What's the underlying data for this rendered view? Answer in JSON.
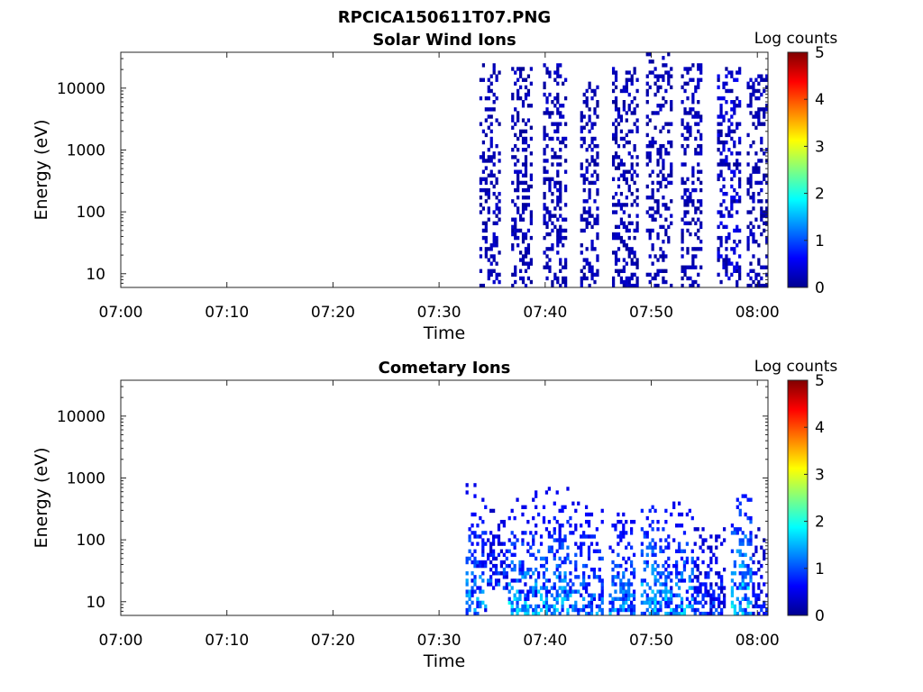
{
  "figure_title": "RPCICA150611T07.PNG",
  "colorbar_colors": [
    "#00008f",
    "#0000ff",
    "#0080ff",
    "#00ffff",
    "#80ff80",
    "#ffff00",
    "#ff8000",
    "#ff0000",
    "#800000"
  ],
  "chart_data": [
    {
      "type": "heatmap",
      "title": "Solar Wind Ions",
      "xlabel": "Time",
      "ylabel": "Energy (eV)",
      "x_ticks": [
        "07:00",
        "07:10",
        "07:20",
        "07:30",
        "07:40",
        "07:50",
        "08:00"
      ],
      "x_range_minutes": [
        0,
        61
      ],
      "y_scale": "log",
      "y_ticks": [
        "10",
        "100",
        "1000",
        "10000"
      ],
      "y_range_eV": [
        6,
        38000
      ],
      "colorbar": {
        "label": "Log counts",
        "range": [
          0,
          5
        ],
        "ticks": [
          "0",
          "1",
          "2",
          "3",
          "4",
          "5"
        ]
      },
      "bursts": [
        {
          "t_start_min": 33.8,
          "t_end_min": 35.6,
          "e_min_eV": 6,
          "e_max_eV": 25000,
          "typical_log_counts": 0.1,
          "peak_log_counts": 0.4
        },
        {
          "t_start_min": 36.8,
          "t_end_min": 38.8,
          "e_min_eV": 6,
          "e_max_eV": 20000,
          "typical_log_counts": 0.1,
          "peak_log_counts": 0.4
        },
        {
          "t_start_min": 39.8,
          "t_end_min": 42.0,
          "e_min_eV": 6,
          "e_max_eV": 25000,
          "typical_log_counts": 0.1,
          "peak_log_counts": 0.4
        },
        {
          "t_start_min": 43.3,
          "t_end_min": 45.0,
          "e_min_eV": 6,
          "e_max_eV": 12000,
          "typical_log_counts": 0.1,
          "peak_log_counts": 0.4
        },
        {
          "t_start_min": 46.3,
          "t_end_min": 48.6,
          "e_min_eV": 6,
          "e_max_eV": 20000,
          "typical_log_counts": 0.1,
          "peak_log_counts": 0.4
        },
        {
          "t_start_min": 49.5,
          "t_end_min": 51.8,
          "e_min_eV": 6,
          "e_max_eV": 35000,
          "typical_log_counts": 0.1,
          "peak_log_counts": 0.4
        },
        {
          "t_start_min": 52.8,
          "t_end_min": 54.8,
          "e_min_eV": 6,
          "e_max_eV": 25000,
          "typical_log_counts": 0.1,
          "peak_log_counts": 0.4
        },
        {
          "t_start_min": 56.2,
          "t_end_min": 58.3,
          "e_min_eV": 6,
          "e_max_eV": 20000,
          "typical_log_counts": 0.1,
          "peak_log_counts": 0.6
        },
        {
          "t_start_min": 59.0,
          "t_end_min": 61.0,
          "e_min_eV": 6,
          "e_max_eV": 15000,
          "typical_log_counts": 0.1,
          "peak_log_counts": 0.4
        }
      ]
    },
    {
      "type": "heatmap",
      "title": "Cometary Ions",
      "xlabel": "Time",
      "ylabel": "Energy (eV)",
      "x_ticks": [
        "07:00",
        "07:10",
        "07:20",
        "07:30",
        "07:40",
        "07:50",
        "08:00"
      ],
      "x_range_minutes": [
        0,
        61
      ],
      "y_scale": "log",
      "y_ticks": [
        "10",
        "100",
        "1000",
        "10000"
      ],
      "y_range_eV": [
        6,
        38000
      ],
      "colorbar": {
        "label": "Log counts",
        "range": [
          0,
          5
        ],
        "ticks": [
          "0",
          "1",
          "2",
          "3",
          "4",
          "5"
        ]
      },
      "bursts": [
        {
          "t_start_min": 32.5,
          "t_end_min": 34.5,
          "e_min_eV": 6,
          "e_max_eV": 800,
          "typical_log_counts": 0.5,
          "peak_log_counts": 1.8
        },
        {
          "t_start_min": 34.5,
          "t_end_min": 36.5,
          "e_min_eV": 15,
          "e_max_eV": 300,
          "typical_log_counts": 0.3,
          "peak_log_counts": 1.5
        },
        {
          "t_start_min": 36.5,
          "t_end_min": 39.0,
          "e_min_eV": 6,
          "e_max_eV": 500,
          "typical_log_counts": 0.5,
          "peak_log_counts": 2.1
        },
        {
          "t_start_min": 39.0,
          "t_end_min": 42.5,
          "e_min_eV": 6,
          "e_max_eV": 700,
          "typical_log_counts": 0.5,
          "peak_log_counts": 1.9
        },
        {
          "t_start_min": 42.5,
          "t_end_min": 45.5,
          "e_min_eV": 6,
          "e_max_eV": 400,
          "typical_log_counts": 0.5,
          "peak_log_counts": 1.6
        },
        {
          "t_start_min": 46.0,
          "t_end_min": 48.5,
          "e_min_eV": 6,
          "e_max_eV": 300,
          "typical_log_counts": 0.5,
          "peak_log_counts": 1.8
        },
        {
          "t_start_min": 49.0,
          "t_end_min": 51.5,
          "e_min_eV": 6,
          "e_max_eV": 600,
          "typical_log_counts": 0.6,
          "peak_log_counts": 2.0
        },
        {
          "t_start_min": 51.5,
          "t_end_min": 54.0,
          "e_min_eV": 6,
          "e_max_eV": 400,
          "typical_log_counts": 0.5,
          "peak_log_counts": 1.9
        },
        {
          "t_start_min": 54.0,
          "t_end_min": 57.0,
          "e_min_eV": 6,
          "e_max_eV": 250,
          "typical_log_counts": 0.3,
          "peak_log_counts": 1.2
        },
        {
          "t_start_min": 57.5,
          "t_end_min": 59.5,
          "e_min_eV": 6,
          "e_max_eV": 1200,
          "typical_log_counts": 0.6,
          "peak_log_counts": 2.2
        },
        {
          "t_start_min": 59.5,
          "t_end_min": 61.0,
          "e_min_eV": 6,
          "e_max_eV": 150,
          "typical_log_counts": 0.3,
          "peak_log_counts": 1.0
        }
      ]
    }
  ]
}
